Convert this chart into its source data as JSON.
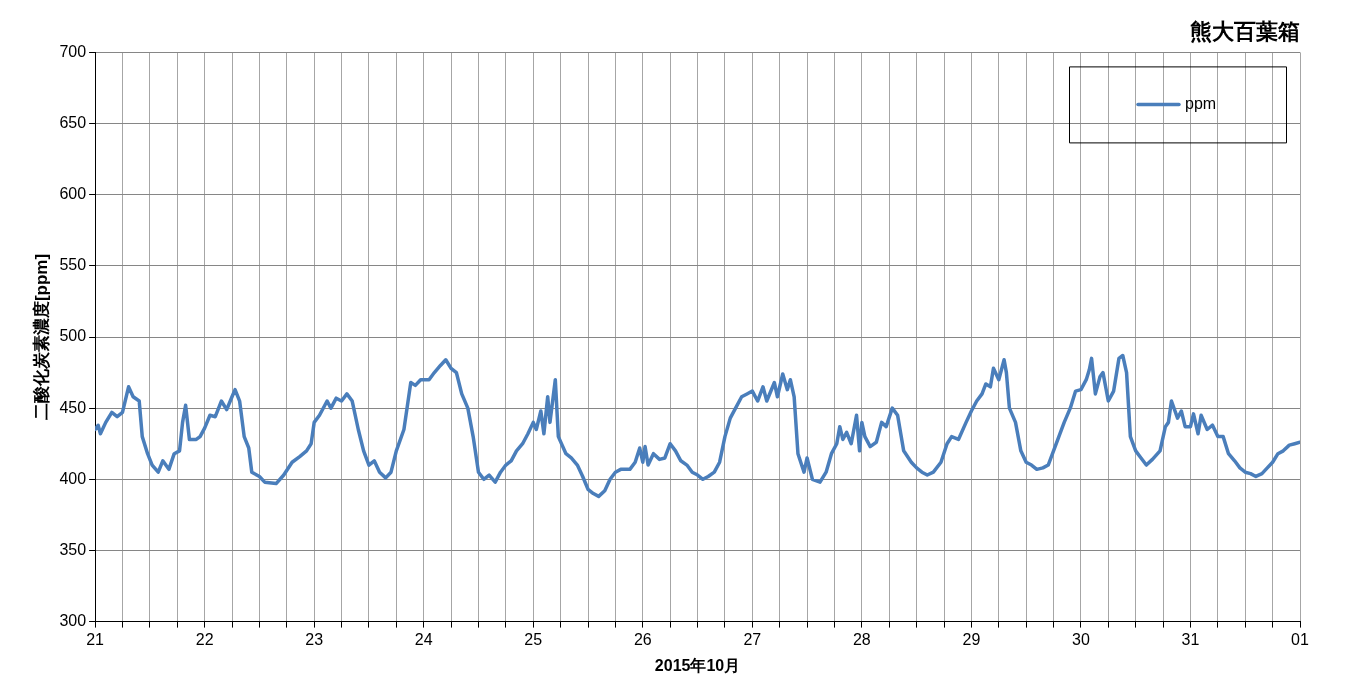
{
  "chart_data": {
    "type": "line",
    "title": "熊大百葉箱",
    "xlabel": "2015年10月",
    "ylabel": "二酸化炭素濃度[ppm]",
    "legend": "top right",
    "grid": true,
    "marker": "none",
    "line_style": "solid",
    "xlim": [
      "2015-10-21T00:00",
      "2015-11-01T00:00"
    ],
    "xticks": [
      {
        "value": "2015-10-21T00:00",
        "label": "21"
      },
      {
        "value": "2015-10-21T06:00",
        "label": null
      },
      {
        "value": "2015-10-21T12:00",
        "label": null
      },
      {
        "value": "2015-10-21T18:00",
        "label": null
      },
      {
        "value": "2015-10-22T00:00",
        "label": "22"
      },
      {
        "value": "2015-10-22T06:00",
        "label": null
      },
      {
        "value": "2015-10-22T12:00",
        "label": null
      },
      {
        "value": "2015-10-22T18:00",
        "label": null
      },
      {
        "value": "2015-10-23T00:00",
        "label": "23"
      },
      {
        "value": "2015-10-23T06:00",
        "label": null
      },
      {
        "value": "2015-10-23T12:00",
        "label": null
      },
      {
        "value": "2015-10-23T18:00",
        "label": null
      },
      {
        "value": "2015-10-24T00:00",
        "label": "24"
      },
      {
        "value": "2015-10-24T06:00",
        "label": null
      },
      {
        "value": "2015-10-24T12:00",
        "label": null
      },
      {
        "value": "2015-10-24T18:00",
        "label": null
      },
      {
        "value": "2015-10-25T00:00",
        "label": "25"
      },
      {
        "value": "2015-10-25T06:00",
        "label": null
      },
      {
        "value": "2015-10-25T12:00",
        "label": null
      },
      {
        "value": "2015-10-25T18:00",
        "label": null
      },
      {
        "value": "2015-10-26T00:00",
        "label": "26"
      },
      {
        "value": "2015-10-26T06:00",
        "label": null
      },
      {
        "value": "2015-10-26T12:00",
        "label": null
      },
      {
        "value": "2015-10-26T18:00",
        "label": null
      },
      {
        "value": "2015-10-27T00:00",
        "label": "27"
      },
      {
        "value": "2015-10-27T06:00",
        "label": null
      },
      {
        "value": "2015-10-27T12:00",
        "label": null
      },
      {
        "value": "2015-10-27T18:00",
        "label": null
      },
      {
        "value": "2015-10-28T00:00",
        "label": "28"
      },
      {
        "value": "2015-10-28T06:00",
        "label": null
      },
      {
        "value": "2015-10-28T12:00",
        "label": null
      },
      {
        "value": "2015-10-28T18:00",
        "label": null
      },
      {
        "value": "2015-10-29T00:00",
        "label": "29"
      },
      {
        "value": "2015-10-29T06:00",
        "label": null
      },
      {
        "value": "2015-10-29T12:00",
        "label": null
      },
      {
        "value": "2015-10-29T18:00",
        "label": null
      },
      {
        "value": "2015-10-30T00:00",
        "label": "30"
      },
      {
        "value": "2015-10-30T06:00",
        "label": null
      },
      {
        "value": "2015-10-30T12:00",
        "label": null
      },
      {
        "value": "2015-10-30T18:00",
        "label": null
      },
      {
        "value": "2015-10-31T00:00",
        "label": "31"
      },
      {
        "value": "2015-10-31T06:00",
        "label": null
      },
      {
        "value": "2015-10-31T12:00",
        "label": null
      },
      {
        "value": "2015-10-31T18:00",
        "label": null
      },
      {
        "value": "2015-11-01T00:00",
        "label": "01"
      }
    ],
    "ylim": [
      300,
      700
    ],
    "yticks": [
      300,
      350,
      400,
      450,
      500,
      550,
      600,
      650,
      700
    ],
    "series": [
      {
        "name": "ppm",
        "color": "#4a7ebb",
        "x": [
          "2015-10-21T00:00",
          "2015-10-21T00:40",
          "2015-10-21T01:10",
          "2015-10-21T02:20",
          "2015-10-21T03:40",
          "2015-10-21T04:50",
          "2015-10-21T06:00",
          "2015-10-21T07:20",
          "2015-10-21T08:20",
          "2015-10-21T09:40",
          "2015-10-21T10:20",
          "2015-10-21T11:30",
          "2015-10-21T12:30",
          "2015-10-21T13:50",
          "2015-10-21T14:50",
          "2015-10-21T16:10",
          "2015-10-21T17:20",
          "2015-10-21T18:30",
          "2015-10-21T19:10",
          "2015-10-21T19:50",
          "2015-10-21T20:40",
          "2015-10-21T22:10",
          "2015-10-21T23:00",
          "2015-10-22T00:00",
          "2015-10-22T01:10",
          "2015-10-22T02:20",
          "2015-10-22T03:40",
          "2015-10-22T04:50",
          "2015-10-22T06:00",
          "2015-10-22T06:40",
          "2015-10-22T07:40",
          "2015-10-22T08:40",
          "2015-10-22T09:40",
          "2015-10-22T10:20",
          "2015-10-22T12:00",
          "2015-10-22T13:10",
          "2015-10-22T15:40",
          "2015-10-22T17:20",
          "2015-10-22T19:10",
          "2015-10-22T20:50",
          "2015-10-22T22:20",
          "2015-10-22T23:20",
          "2015-10-23T00:00",
          "2015-10-23T01:10",
          "2015-10-23T02:50",
          "2015-10-23T03:40",
          "2015-10-23T04:50",
          "2015-10-23T06:00",
          "2015-10-23T07:10",
          "2015-10-23T08:20",
          "2015-10-23T09:40",
          "2015-10-23T10:50",
          "2015-10-23T12:00",
          "2015-10-23T13:10",
          "2015-10-23T14:20",
          "2015-10-23T15:40",
          "2015-10-23T16:50",
          "2015-10-23T18:00",
          "2015-10-23T19:40",
          "2015-10-23T21:10",
          "2015-10-23T22:10",
          "2015-10-23T23:20",
          "2015-10-24T00:00",
          "2015-10-24T01:10",
          "2015-10-24T02:20",
          "2015-10-24T03:40",
          "2015-10-24T04:50",
          "2015-10-24T06:00",
          "2015-10-24T07:10",
          "2015-10-24T08:20",
          "2015-10-24T09:40",
          "2015-10-24T10:50",
          "2015-10-24T12:00",
          "2015-10-24T13:10",
          "2015-10-24T14:20",
          "2015-10-24T15:40",
          "2015-10-24T16:50",
          "2015-10-24T18:00",
          "2015-10-24T19:10",
          "2015-10-24T20:20",
          "2015-10-24T21:40",
          "2015-10-24T22:50",
          "2015-10-25T00:00",
          "2015-10-25T00:40",
          "2015-10-25T01:40",
          "2015-10-25T02:20",
          "2015-10-25T03:10",
          "2015-10-25T03:40",
          "2015-10-25T04:50",
          "2015-10-25T05:30",
          "2015-10-25T07:10",
          "2015-10-25T08:20",
          "2015-10-25T09:40",
          "2015-10-25T10:50",
          "2015-10-25T12:00",
          "2015-10-25T13:10",
          "2015-10-25T14:20",
          "2015-10-25T15:40",
          "2015-10-25T16:50",
          "2015-10-25T18:00",
          "2015-10-25T19:10",
          "2015-10-25T21:10",
          "2015-10-25T22:20",
          "2015-10-25T23:20",
          "2015-10-26T00:00",
          "2015-10-26T00:30",
          "2015-10-26T01:10",
          "2015-10-26T02:20",
          "2015-10-26T03:40",
          "2015-10-26T04:50",
          "2015-10-26T06:00",
          "2015-10-26T07:10",
          "2015-10-26T08:20",
          "2015-10-26T09:40",
          "2015-10-26T10:50",
          "2015-10-26T12:00",
          "2015-10-26T13:10",
          "2015-10-26T14:20",
          "2015-10-26T15:40",
          "2015-10-26T16:50",
          "2015-10-26T18:00",
          "2015-10-26T19:10",
          "2015-10-26T20:20",
          "2015-10-26T21:40",
          "2015-10-26T22:50",
          "2015-10-27T00:00",
          "2015-10-27T01:10",
          "2015-10-27T02:20",
          "2015-10-27T03:10",
          "2015-10-27T04:50",
          "2015-10-27T05:30",
          "2015-10-27T06:40",
          "2015-10-27T07:40",
          "2015-10-27T08:20",
          "2015-10-27T09:10",
          "2015-10-27T10:00",
          "2015-10-27T11:20",
          "2015-10-27T12:00",
          "2015-10-27T13:10",
          "2015-10-27T14:50",
          "2015-10-27T16:10",
          "2015-10-27T17:20",
          "2015-10-27T18:30",
          "2015-10-27T19:10",
          "2015-10-27T19:50",
          "2015-10-27T20:40",
          "2015-10-27T21:40",
          "2015-10-27T22:50",
          "2015-10-27T23:30",
          "2015-10-28T00:00",
          "2015-10-28T00:40",
          "2015-10-28T01:50",
          "2015-10-28T03:10",
          "2015-10-28T04:20",
          "2015-10-28T05:20",
          "2015-10-28T06:40",
          "2015-10-28T07:50",
          "2015-10-28T09:10",
          "2015-10-28T10:50",
          "2015-10-28T12:00",
          "2015-10-28T13:10",
          "2015-10-28T14:20",
          "2015-10-28T15:40",
          "2015-10-28T17:20",
          "2015-10-28T18:40",
          "2015-10-28T19:40",
          "2015-10-28T21:10",
          "2015-10-28T22:50",
          "2015-10-29T00:00",
          "2015-10-29T01:10",
          "2015-10-29T02:20",
          "2015-10-29T03:10",
          "2015-10-29T04:10",
          "2015-10-29T04:50",
          "2015-10-29T06:00",
          "2015-10-29T07:10",
          "2015-10-29T07:40",
          "2015-10-29T08:20",
          "2015-10-29T09:40",
          "2015-10-29T10:50",
          "2015-10-29T12:00",
          "2015-10-29T13:10",
          "2015-10-29T14:20",
          "2015-10-29T15:40",
          "2015-10-29T16:50",
          "2015-10-29T18:00",
          "2015-10-29T19:10",
          "2015-10-29T20:20",
          "2015-10-29T21:40",
          "2015-10-29T22:50",
          "2015-10-30T00:00",
          "2015-10-30T01:10",
          "2015-10-30T01:50",
          "2015-10-30T02:20",
          "2015-10-30T03:10",
          "2015-10-30T04:10",
          "2015-10-30T04:50",
          "2015-10-30T06:00",
          "2015-10-30T07:10",
          "2015-10-30T08:20",
          "2015-10-30T09:10",
          "2015-10-30T10:00",
          "2015-10-30T10:50",
          "2015-10-30T12:00",
          "2015-10-30T13:10",
          "2015-10-30T14:20",
          "2015-10-30T15:40",
          "2015-10-30T17:20",
          "2015-10-30T18:30",
          "2015-10-30T19:10",
          "2015-10-30T19:50",
          "2015-10-30T21:10",
          "2015-10-30T22:00",
          "2015-10-30T22:50",
          "2015-10-31T00:00",
          "2015-10-31T00:40",
          "2015-10-31T01:40",
          "2015-10-31T02:20",
          "2015-10-31T03:40",
          "2015-10-31T04:50",
          "2015-10-31T06:00",
          "2015-10-31T07:10",
          "2015-10-31T08:20",
          "2015-10-31T09:40",
          "2015-10-31T10:50",
          "2015-10-31T12:00",
          "2015-10-31T13:10",
          "2015-10-31T14:20",
          "2015-10-31T15:40",
          "2015-10-31T16:50",
          "2015-10-31T18:00",
          "2015-10-31T19:10",
          "2015-10-31T20:20",
          "2015-10-31T21:40",
          "2015-10-31T22:50",
          "2015-11-01T00:00"
        ],
        "values": [
          435,
          438,
          432,
          440,
          447,
          444,
          447,
          465,
          458,
          455,
          430,
          418,
          410,
          405,
          413,
          407,
          418,
          420,
          440,
          452,
          428,
          428,
          430,
          436,
          445,
          444,
          455,
          449,
          458,
          463,
          455,
          430,
          422,
          405,
          402,
          398,
          397,
          403,
          412,
          416,
          420,
          425,
          440,
          445,
          455,
          450,
          457,
          455,
          460,
          455,
          435,
          420,
          410,
          413,
          405,
          401,
          405,
          420,
          435,
          468,
          466,
          470,
          470,
          470,
          475,
          480,
          484,
          478,
          475,
          460,
          450,
          430,
          405,
          400,
          403,
          398,
          405,
          410,
          413,
          420,
          425,
          432,
          440,
          435,
          448,
          432,
          458,
          440,
          470,
          430,
          418,
          415,
          410,
          402,
          393,
          390,
          388,
          392,
          400,
          405,
          407,
          407,
          412,
          422,
          412,
          423,
          410,
          418,
          414,
          415,
          425,
          420,
          413,
          410,
          405,
          403,
          400,
          402,
          405,
          412,
          430,
          443,
          450,
          458,
          460,
          462,
          455,
          465,
          455,
          468,
          458,
          474,
          463,
          470,
          458,
          418,
          405,
          415,
          400,
          398,
          405,
          418,
          425,
          437,
          428,
          433,
          425,
          445,
          420,
          440,
          430,
          423,
          426,
          440,
          437,
          450,
          445,
          420,
          412,
          408,
          405,
          403,
          405,
          412,
          425,
          430,
          428,
          440,
          448,
          455,
          460,
          467,
          465,
          478,
          470,
          484,
          475,
          450,
          440,
          420,
          412,
          410,
          407,
          408,
          410,
          420,
          430,
          440,
          450,
          462,
          463,
          470,
          477,
          485,
          460,
          472,
          475,
          455,
          462,
          485,
          487,
          475,
          430,
          420,
          415,
          410,
          414,
          420,
          437,
          440,
          455,
          443,
          448,
          437,
          437,
          446,
          432,
          445,
          435,
          438,
          430,
          430,
          418,
          413,
          408,
          405,
          404,
          402,
          404,
          408,
          412,
          418,
          420,
          424,
          425,
          426
        ]
      }
    ]
  }
}
